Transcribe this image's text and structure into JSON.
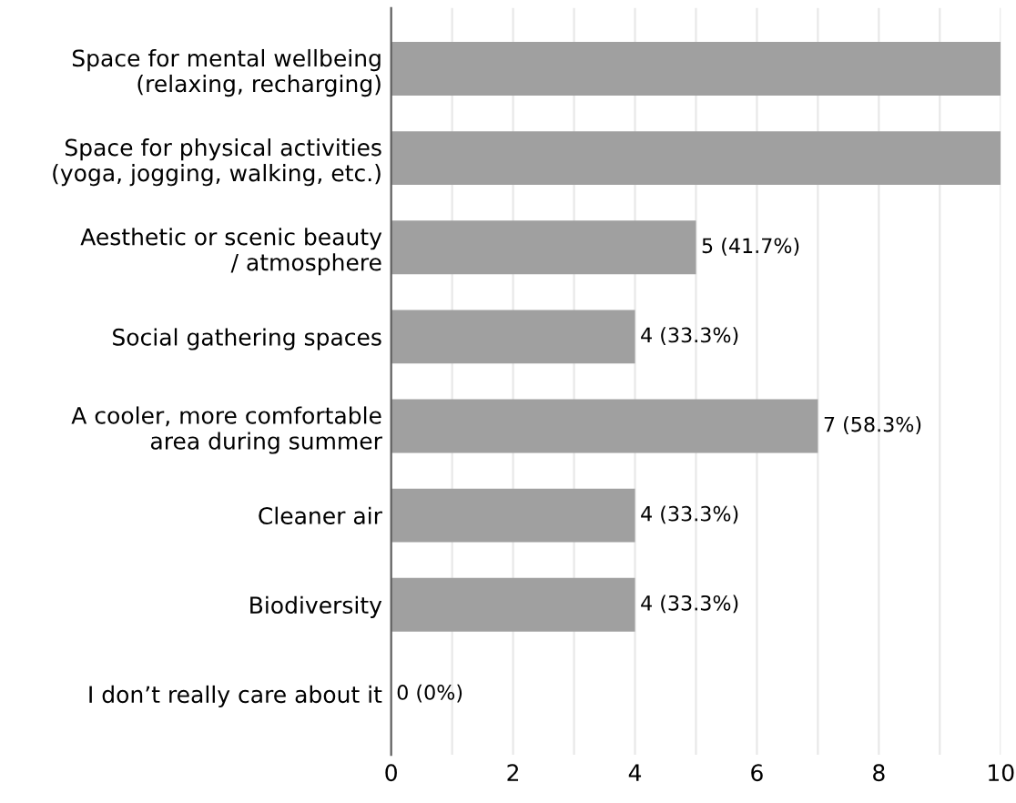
{
  "chart_data": {
    "type": "bar",
    "orientation": "horizontal",
    "categories": [
      "Space for mental wellbeing\n(relaxing, recharging)",
      "Space for physical activities\n(yoga, jogging, walking, etc.)",
      "Aesthetic or scenic beauty\n/ atmosphere",
      "Social gathering spaces",
      "A cooler, more comfortable\narea during summer",
      "Cleaner air",
      "Biodiversity",
      "I don’t really care about it"
    ],
    "values": [
      10,
      10,
      5,
      4,
      7,
      4,
      4,
      0
    ],
    "value_labels": [
      null,
      null,
      "5 (41.7%)",
      "4 (33.3%)",
      "7 (58.3%)",
      "4 (33.3%)",
      "4 (33.3%)",
      "0 (0%)"
    ],
    "color": "#a0a0a0",
    "xlim": [
      0,
      10
    ],
    "xticks": [
      0,
      {
        "value": 1,
        "label": null
      },
      2,
      {
        "value": 3,
        "label": null
      },
      4,
      {
        "value": 5,
        "label": null
      },
      6,
      {
        "value": 7,
        "label": null
      },
      8,
      {
        "value": 9,
        "label": null
      },
      10
    ],
    "grid": "x"
  }
}
